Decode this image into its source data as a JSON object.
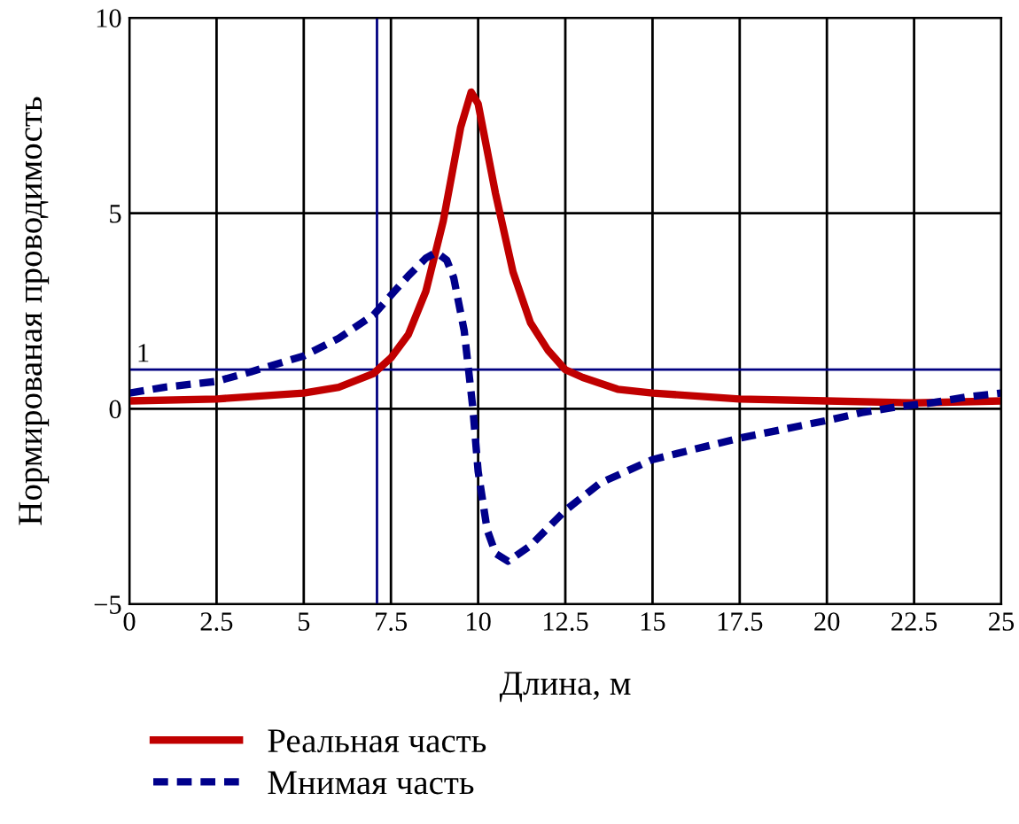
{
  "chart_data": {
    "type": "line",
    "xlabel": "Длина, м",
    "ylabel": "Нормированая проводимость",
    "xlim": [
      0,
      25
    ],
    "ylim": [
      -5,
      10
    ],
    "xticks": [
      0,
      2.5,
      5,
      7.5,
      10,
      12.5,
      15,
      17.5,
      20,
      22.5,
      25
    ],
    "yticks": [
      -5,
      0,
      5,
      10
    ],
    "grid": true,
    "legend": "bottom left",
    "ref_lines": [
      {
        "axis": "y",
        "value": 1,
        "label": "1",
        "color": "#000080"
      },
      {
        "axis": "x",
        "value": 7.1,
        "color": "#000080"
      }
    ],
    "series": [
      {
        "name": "Реальная часть",
        "color": "#c00000",
        "line_style": "solid",
        "x": [
          0,
          2.5,
          5,
          6,
          7,
          7.5,
          8,
          8.5,
          9,
          9.5,
          9.8,
          10,
          10.5,
          11,
          11.5,
          12,
          12.5,
          13,
          14,
          15,
          17.5,
          20,
          22.5,
          25
        ],
        "values": [
          0.2,
          0.25,
          0.4,
          0.55,
          0.9,
          1.3,
          1.9,
          3.0,
          4.8,
          7.2,
          8.1,
          7.8,
          5.5,
          3.5,
          2.2,
          1.5,
          1.0,
          0.8,
          0.5,
          0.4,
          0.25,
          0.2,
          0.15,
          0.2
        ]
      },
      {
        "name": "Мнимая часть",
        "color": "#00008b",
        "line_style": "dashed",
        "x": [
          0,
          1,
          2.5,
          3.5,
          5,
          6,
          7,
          7.5,
          8,
          8.5,
          8.8,
          9.1,
          9.3,
          9.6,
          9.85,
          10.0,
          10.26,
          10.5,
          10.86,
          11.5,
          12.5,
          13.5,
          15,
          17.5,
          20,
          21,
          22,
          23,
          24,
          25
        ],
        "values": [
          0.4,
          0.55,
          0.7,
          0.95,
          1.35,
          1.8,
          2.4,
          2.9,
          3.4,
          3.85,
          4.0,
          3.8,
          3.35,
          2.0,
          0.0,
          -1.6,
          -3.1,
          -3.7,
          -3.9,
          -3.5,
          -2.6,
          -1.9,
          -1.3,
          -0.75,
          -0.3,
          -0.1,
          0.05,
          0.15,
          0.3,
          0.4
        ]
      }
    ]
  }
}
